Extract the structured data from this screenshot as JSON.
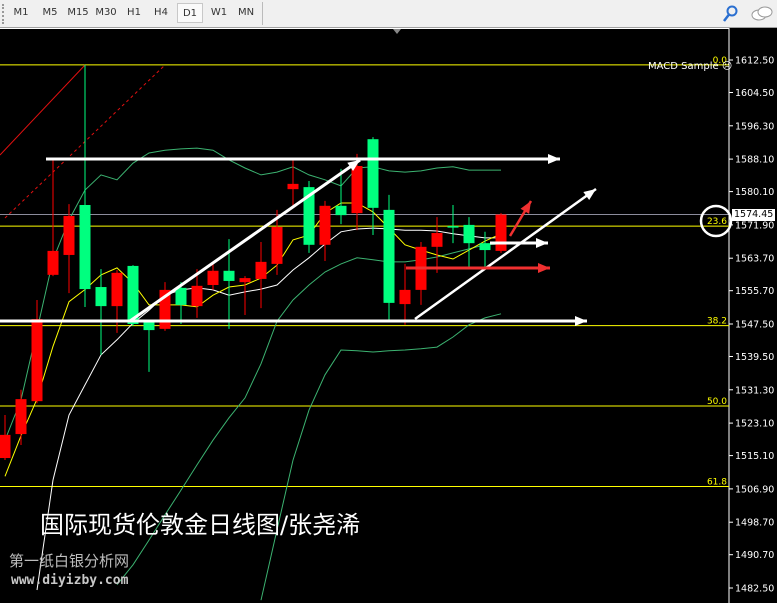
{
  "toolbar": {
    "timeframes": [
      "M1",
      "M5",
      "M15",
      "M30",
      "H1",
      "H4",
      "D1",
      "W1",
      "MN"
    ],
    "active_timeframe": "D1",
    "icons": [
      "search-icon",
      "chat-icon"
    ]
  },
  "chart": {
    "expert_advisor": "MACD Sample",
    "ea_status_icon": "sad-face-icon",
    "current_price": "1574.45",
    "price_ticks": [
      "1612.50",
      "1604.50",
      "1596.30",
      "1588.10",
      "1580.10",
      "1571.90",
      "1563.70",
      "1555.70",
      "1547.50",
      "1539.50",
      "1531.30",
      "1523.10",
      "1515.10",
      "1506.90",
      "1498.70",
      "1490.70",
      "1482.50"
    ],
    "fib_levels": [
      {
        "label": "0.0",
        "price": 1611.3
      },
      {
        "label": "23.6",
        "price": 1571.6
      },
      {
        "label": "38.2",
        "price": 1547.1
      },
      {
        "label": "50.0",
        "price": 1527.3
      },
      {
        "label": "61.8",
        "price": 1507.5
      }
    ],
    "colors": {
      "bull": "#ff0000",
      "bear": "#00ff7f",
      "fib": "#ffff00",
      "ma_fast": "#ffff00",
      "ma_slow": "#ffffff",
      "bands": "#3cb371",
      "background": "#000000"
    },
    "title": "国际现货伦敦金日线图/张尧浠",
    "watermark_cn": "第一纸白银分析网",
    "watermark_url": "www.diyizby.com"
  },
  "chart_data": {
    "type": "candlestick",
    "timeframe": "D1",
    "ohlc": [
      [
        1514.5,
        1525.1,
        1514.0,
        1520.2
      ],
      [
        1520.4,
        1531.3,
        1517.7,
        1529.0
      ],
      [
        1528.5,
        1553.4,
        1528.0,
        1548.7
      ],
      [
        1559.6,
        1587.9,
        1559.3,
        1565.5
      ],
      [
        1564.5,
        1577.0,
        1555.1,
        1574.1
      ],
      [
        1576.8,
        1611.3,
        1551.7,
        1556.1
      ],
      [
        1556.6,
        1561.0,
        1539.9,
        1551.9
      ],
      [
        1551.9,
        1560.8,
        1545.3,
        1560.1
      ],
      [
        1561.8,
        1562.0,
        1547.0,
        1547.5
      ],
      [
        1548.0,
        1548.5,
        1535.7,
        1546.0
      ],
      [
        1546.3,
        1557.8,
        1545.8,
        1555.9
      ],
      [
        1556.4,
        1557.8,
        1547.5,
        1552.2
      ],
      [
        1551.9,
        1561.0,
        1549.0,
        1556.9
      ],
      [
        1557.1,
        1562.8,
        1555.9,
        1560.6
      ],
      [
        1560.6,
        1568.4,
        1546.3,
        1558.1
      ],
      [
        1557.8,
        1559.3,
        1549.7,
        1558.8
      ],
      [
        1558.6,
        1567.7,
        1551.4,
        1562.8
      ],
      [
        1562.3,
        1575.6,
        1559.6,
        1571.4
      ],
      [
        1580.7,
        1588.1,
        1576.6,
        1582.0
      ],
      [
        1581.2,
        1582.7,
        1565.0,
        1567.0
      ],
      [
        1567.0,
        1577.8,
        1563.0,
        1576.6
      ],
      [
        1576.6,
        1585.7,
        1572.1,
        1574.3
      ],
      [
        1574.8,
        1589.4,
        1570.6,
        1586.4
      ],
      [
        1593.0,
        1593.5,
        1569.4,
        1576.1
      ],
      [
        1575.6,
        1579.3,
        1548.5,
        1552.7
      ],
      [
        1552.4,
        1562.3,
        1547.3,
        1555.9
      ],
      [
        1555.9,
        1567.7,
        1552.2,
        1566.5
      ],
      [
        1566.5,
        1573.8,
        1560.1,
        1569.9
      ],
      [
        1571.6,
        1576.8,
        1567.4,
        1571.5
      ],
      [
        1571.9,
        1573.8,
        1561.5,
        1567.4
      ],
      [
        1567.4,
        1570.2,
        1561.5,
        1565.7
      ],
      [
        1565.5,
        1574.8,
        1565.0,
        1574.45
      ]
    ],
    "ma_fast": [
      1510,
      1520,
      1529,
      1542,
      1553,
      1556,
      1559.6,
      1561.3,
      1557.6,
      1552.2,
      1552.2,
      1552.2,
      1551.7,
      1554.6,
      1556.6,
      1557.1,
      1558.8,
      1562,
      1568.2,
      1569.4,
      1574.8,
      1577.3,
      1577.3,
      1575.1,
      1571.1,
      1567,
      1565.7,
      1564.5,
      1563.5,
      1565.7,
      1567.9,
      1569.7
    ],
    "ma_slow": [
      null,
      null,
      1482.0,
      1509.1,
      1525.1,
      1532.5,
      1539.9,
      1543.6,
      1547.7,
      1550.9,
      1554.6,
      1555.9,
      1556.4,
      1555.9,
      1554.6,
      1555.4,
      1556.1,
      1557.1,
      1560.8,
      1563.8,
      1567.2,
      1570.2,
      1570.9,
      1571.1,
      1570.9,
      1570.6,
      1570.6,
      1570.4,
      1569.7,
      1569.2,
      1568.7,
      1568.7
    ],
    "band_upper": [
      1518.9,
      1528.8,
      1546.0,
      1563.3,
      1573.1,
      1580.5,
      1584.2,
      1583.0,
      1587.1,
      1589.6,
      1590.3,
      1590.6,
      1590.8,
      1590.3,
      1587.9,
      1585.9,
      1584.2,
      1584.9,
      1586.2,
      1584.2,
      1583.0,
      1581.5,
      1585.9,
      1586.2,
      1585.2,
      1584.9,
      1585.2,
      1585.9,
      1586.2,
      1585.4,
      1585.4,
      1585.4
    ],
    "band_middle": [
      null,
      null,
      null,
      null,
      null,
      null,
      null,
      1483.3,
      1488.2,
      1494.3,
      1500.5,
      1506.6,
      1512.8,
      1518.9,
      1524.4,
      1529.3,
      1537.7,
      1548.2,
      1553.4,
      1557.1,
      1560.3,
      1562.3,
      1563.8,
      1563.3,
      1562.8,
      1562.8,
      1563.3,
      1564.0,
      1565.0,
      1566.0,
      1567.0,
      1567.2
    ],
    "band_lower": [
      null,
      null,
      null,
      null,
      null,
      null,
      null,
      null,
      null,
      null,
      null,
      null,
      null,
      null,
      null,
      null,
      1479.5,
      1496.8,
      1514.0,
      1526.3,
      1535.0,
      1541.1,
      1540.9,
      1540.6,
      1540.9,
      1541.1,
      1541.4,
      1541.8,
      1544.3,
      1547.3,
      1549.0,
      1550.0
    ],
    "ylim": [
      1479,
      1620
    ]
  }
}
